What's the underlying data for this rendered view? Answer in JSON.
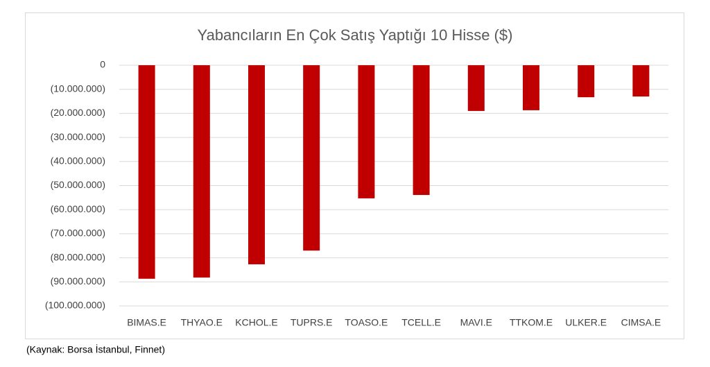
{
  "chart_data": {
    "type": "bar",
    "title": "Yabancıların En Çok Satış Yaptığı 10 Hisse ($)",
    "categories": [
      "BIMAS.E",
      "THYAO.E",
      "KCHOL.E",
      "TUPRS.E",
      "TOASO.E",
      "TCELL.E",
      "MAVI.E",
      "TTKOM.E",
      "ULKER.E",
      "CIMSA.E"
    ],
    "values": [
      -88700000,
      -88200000,
      -82700000,
      -77000000,
      -55300000,
      -53900000,
      -19000000,
      -18700000,
      -13300000,
      -13000000
    ],
    "color": "#c00000",
    "ylim": [
      -100000000,
      0
    ],
    "yticks": [
      0,
      {
        "value": -10000000,
        "label": "(10.000.000)"
      },
      {
        "value": -20000000,
        "label": "(20.000.000)"
      },
      {
        "value": -30000000,
        "label": "(30.000.000)"
      },
      {
        "value": -40000000,
        "label": "(40.000.000)"
      },
      {
        "value": -50000000,
        "label": "(50.000.000)"
      },
      {
        "value": -60000000,
        "label": "(60.000.000)"
      },
      {
        "value": -70000000,
        "label": "(70.000.000)"
      },
      {
        "value": -80000000,
        "label": "(80.000.000)"
      },
      {
        "value": -90000000,
        "label": "(90.000.000)"
      },
      {
        "value": -100000000,
        "label": "(100.000.000)"
      }
    ],
    "grid": true,
    "source": "(Kaynak: Borsa İstanbul, Finnet)"
  }
}
